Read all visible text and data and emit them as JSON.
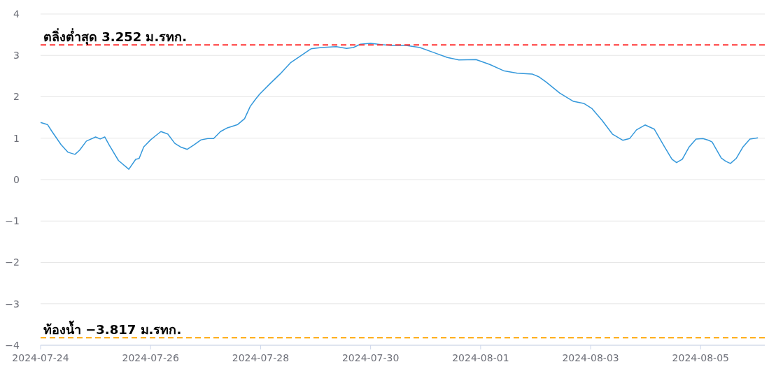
{
  "chart_data": {
    "type": "line",
    "x": [
      "2024-07-24T00:00",
      "2024-07-24T03:00",
      "2024-07-24T05:00",
      "2024-07-24T09:00",
      "2024-07-24T12:00",
      "2024-07-24T15:00",
      "2024-07-24T17:00",
      "2024-07-24T20:00",
      "2024-07-25T00:00",
      "2024-07-25T02:00",
      "2024-07-25T04:00",
      "2024-07-25T06:00",
      "2024-07-25T10:00",
      "2024-07-25T14:30",
      "2024-07-25T17:30",
      "2024-07-25T19:00",
      "2024-07-25T21:00",
      "2024-07-26T00:00",
      "2024-07-26T02:00",
      "2024-07-26T04:30",
      "2024-07-26T07:30",
      "2024-07-26T10:30",
      "2024-07-26T13:00",
      "2024-07-26T16:00",
      "2024-07-26T19:00",
      "2024-07-26T22:00",
      "2024-07-27T01:00",
      "2024-07-27T03:30",
      "2024-07-27T06:30",
      "2024-07-27T09:30",
      "2024-07-27T14:00",
      "2024-07-27T17:00",
      "2024-07-27T19:30",
      "2024-07-27T21:30",
      "2024-07-27T23:30",
      "2024-07-28T04:00",
      "2024-07-28T08:30",
      "2024-07-28T13:00",
      "2024-07-28T17:30",
      "2024-07-28T22:00",
      "2024-07-29T02:30",
      "2024-07-29T09:00",
      "2024-07-29T13:30",
      "2024-07-29T16:30",
      "2024-07-29T19:30",
      "2024-07-30T00:00",
      "2024-07-30T04:30",
      "2024-07-30T09:00",
      "2024-07-30T15:30",
      "2024-07-30T21:30",
      "2024-07-31T03:30",
      "2024-07-31T09:30",
      "2024-07-31T14:30",
      "2024-07-31T22:00",
      "2024-08-01T04:00",
      "2024-08-01T10:00",
      "2024-08-01T16:00",
      "2024-08-01T22:30",
      "2024-08-02T01:30",
      "2024-08-02T04:30",
      "2024-08-02T10:30",
      "2024-08-02T16:30",
      "2024-08-02T21:00",
      "2024-08-03T00:30",
      "2024-08-03T05:00",
      "2024-08-03T09:30",
      "2024-08-03T14:00",
      "2024-08-03T17:00",
      "2024-08-03T20:00",
      "2024-08-03T23:45",
      "2024-08-04T03:45",
      "2024-08-04T08:15",
      "2024-08-04T11:30",
      "2024-08-04T13:30",
      "2024-08-04T16:00",
      "2024-08-04T19:00",
      "2024-08-04T22:00",
      "2024-08-05T01:00",
      "2024-08-05T03:30",
      "2024-08-05T05:00",
      "2024-08-05T09:00",
      "2024-08-05T11:00",
      "2024-08-05T13:00",
      "2024-08-05T15:30",
      "2024-08-05T18:30",
      "2024-08-05T21:30",
      "2024-08-06T01:00"
    ],
    "series": [
      {
        "color": "#3498db",
        "values": [
          1.38,
          1.33,
          1.16,
          0.84,
          0.66,
          0.61,
          0.71,
          0.93,
          1.03,
          0.98,
          1.03,
          0.83,
          0.46,
          0.25,
          0.49,
          0.51,
          0.79,
          0.96,
          1.05,
          1.16,
          1.1,
          0.88,
          0.79,
          0.73,
          0.84,
          0.96,
          0.99,
          0.99,
          1.16,
          1.25,
          1.33,
          1.47,
          1.77,
          1.92,
          2.06,
          2.31,
          2.55,
          2.82,
          2.99,
          3.16,
          3.19,
          3.21,
          3.17,
          3.19,
          3.27,
          3.29,
          3.26,
          3.24,
          3.24,
          3.19,
          3.07,
          2.95,
          2.89,
          2.9,
          2.78,
          2.63,
          2.57,
          2.55,
          2.48,
          2.36,
          2.09,
          1.89,
          1.84,
          1.72,
          1.43,
          1.1,
          0.95,
          0.99,
          1.2,
          1.32,
          1.22,
          0.79,
          0.49,
          0.41,
          0.49,
          0.79,
          0.98,
          0.99,
          0.95,
          0.91,
          0.52,
          0.44,
          0.39,
          0.51,
          0.79,
          0.98,
          1.01
        ]
      }
    ],
    "xlim": [
      "2024-07-24T00:00",
      "2024-08-06T04:00"
    ],
    "xticks": [
      "2024-07-24",
      "2024-07-26",
      "2024-07-28",
      "2024-07-30",
      "2024-08-01",
      "2024-08-03",
      "2024-08-05"
    ],
    "ylim": [
      -4,
      4
    ],
    "yticks": [
      {
        "value": -4,
        "label": "−4"
      },
      {
        "value": -3,
        "label": "−3"
      },
      {
        "value": -2,
        "label": "−2"
      },
      {
        "value": -1,
        "label": "−1"
      },
      0,
      1,
      2,
      3,
      4
    ],
    "grid": "y",
    "marker": "none",
    "line_style": "solid",
    "ref_lines": [
      {
        "axis": "y",
        "value": 3.252,
        "label": "ตลิ่งต่ำสุด 3.252 ม.รทก.",
        "color": "#ff3333",
        "line_style": "dashed"
      },
      {
        "axis": "y",
        "value": -3.817,
        "label": "ท้องน้ำ −3.817 ม.รทก.",
        "color": "#ffa500",
        "line_style": "dashed"
      }
    ]
  }
}
